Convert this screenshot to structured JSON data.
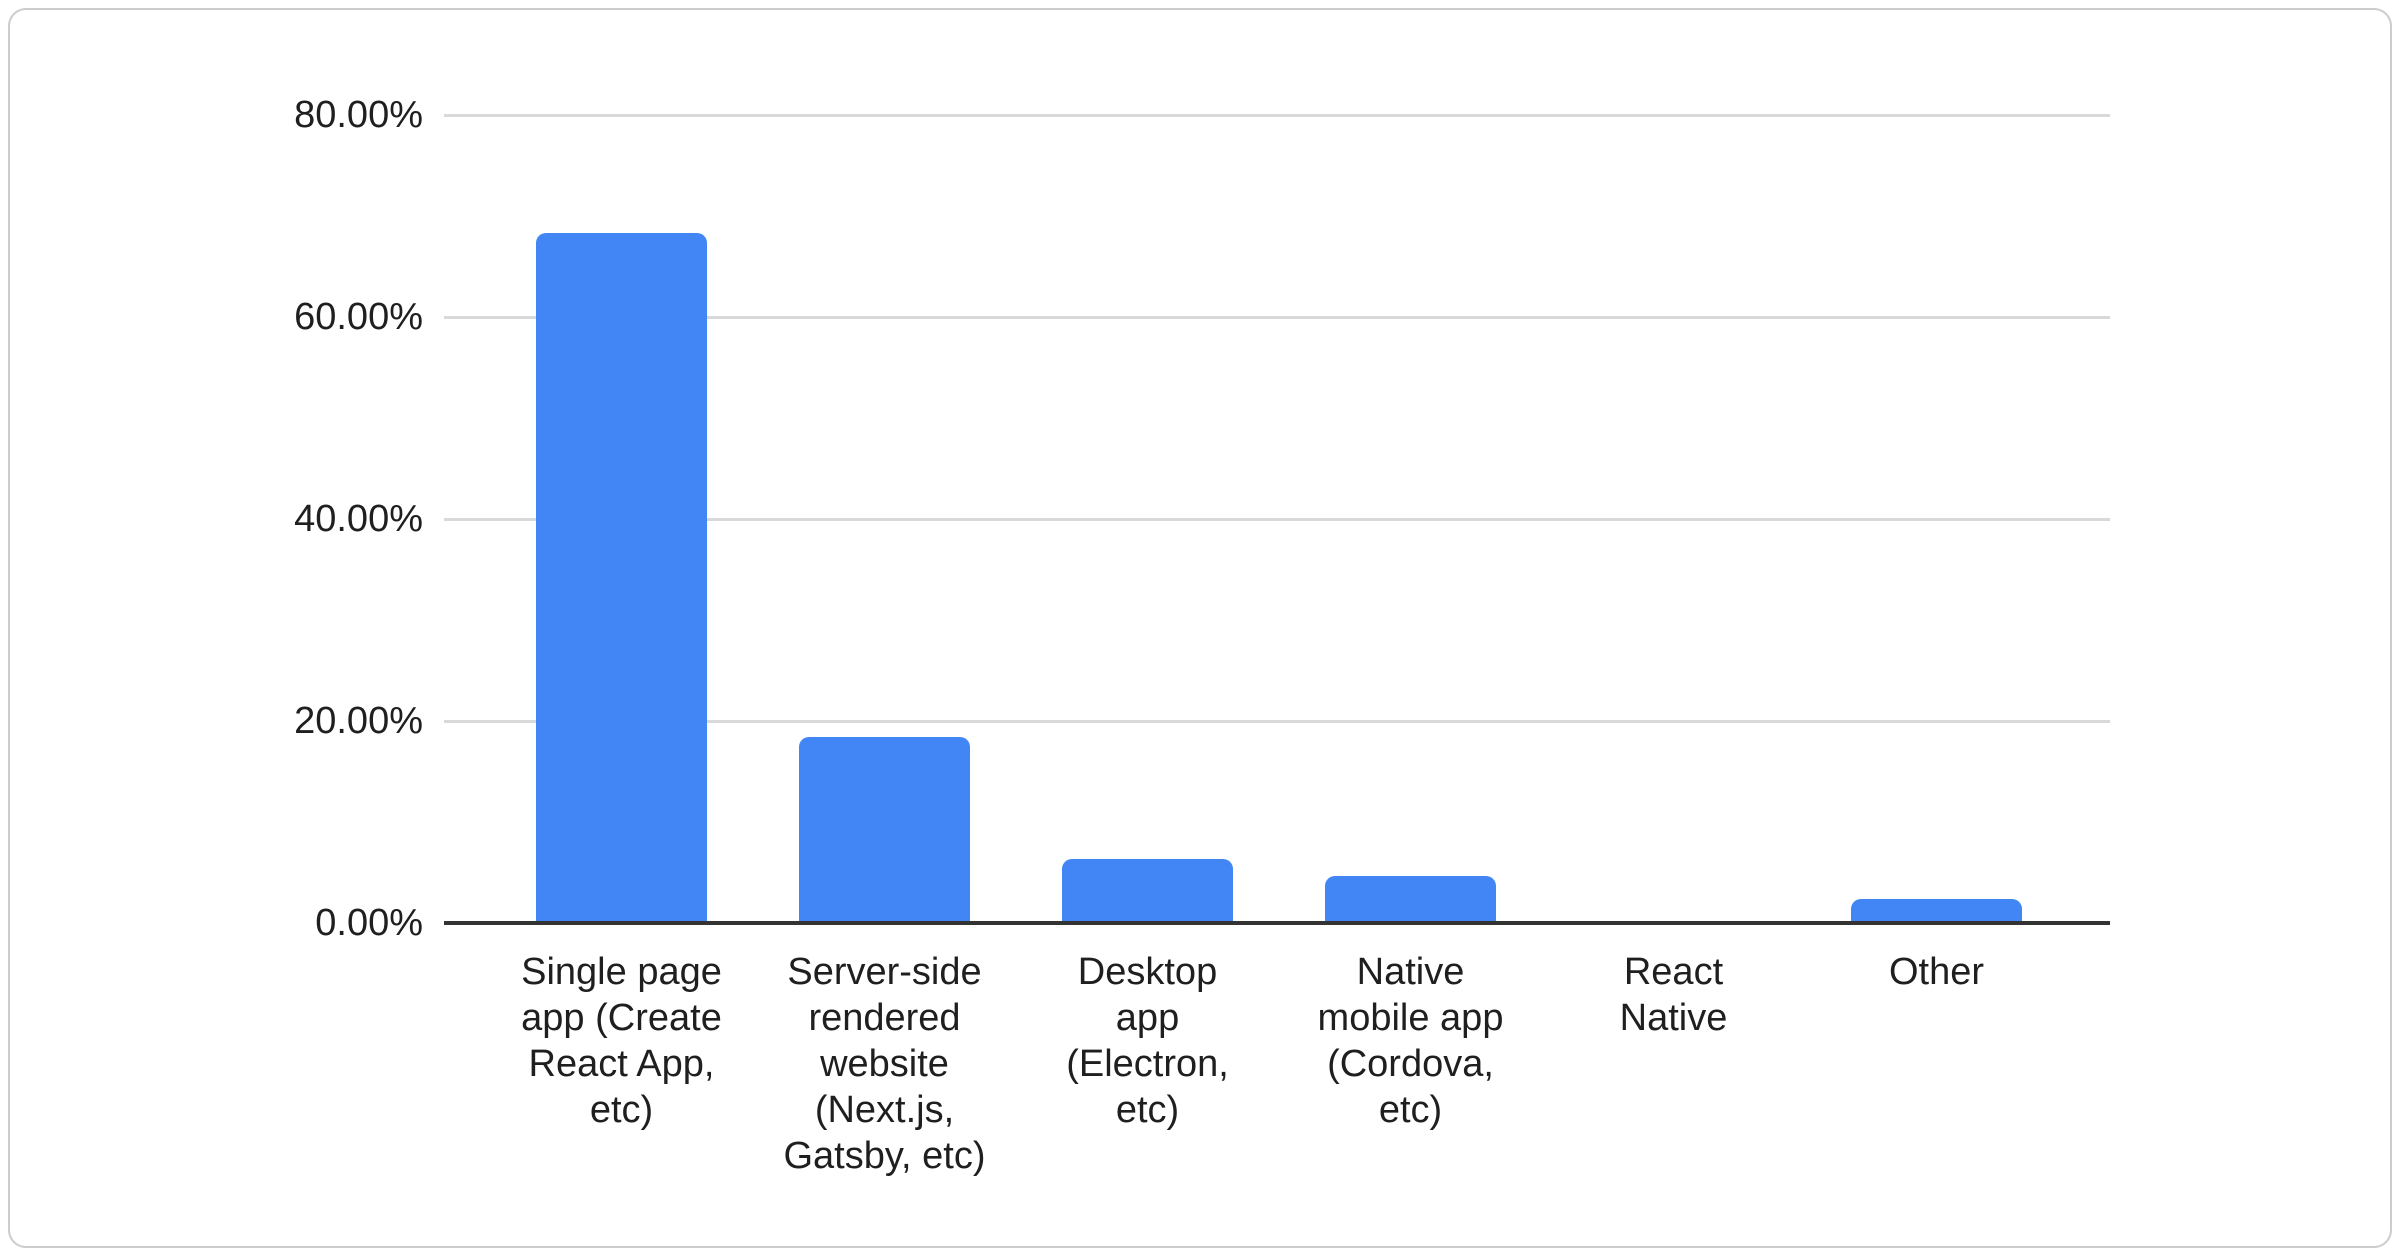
{
  "chart_data": {
    "type": "bar",
    "title": "",
    "xlabel": "",
    "ylabel": "",
    "categories": [
      "Single page app (Create React App, etc)",
      "Server-side rendered website (Next.js, Gatsby, etc)",
      "Desktop app (Electron, etc)",
      "Native mobile app (Cordova, etc)",
      "React Native",
      "Other"
    ],
    "category_lines": [
      [
        "Single page",
        "app (Create",
        "React App,",
        "etc)"
      ],
      [
        "Server-side",
        "rendered",
        "website",
        "(Next.js,",
        "Gatsby, etc)"
      ],
      [
        "Desktop",
        "app",
        "(Electron,",
        "etc)"
      ],
      [
        "Native",
        "mobile app",
        "(Cordova,",
        "etc)"
      ],
      [
        "React",
        "Native"
      ],
      [
        "Other"
      ]
    ],
    "values": [
      68.3,
      18.4,
      6.3,
      4.7,
      0,
      2.4
    ],
    "value_unit": "percent",
    "y_axis": {
      "min": 0,
      "max": 80,
      "ticks": [
        {
          "label": "80.00%",
          "value": 80
        },
        {
          "label": "60.00%",
          "value": 60
        },
        {
          "label": "40.00%",
          "value": 40
        },
        {
          "label": "20.00%",
          "value": 20
        },
        {
          "label": "0.00%",
          "value": 0
        }
      ]
    },
    "grid": true,
    "legend": "none",
    "colors": {
      "bar": "#4285f4",
      "gridline": "#d9d9d9",
      "axis_line": "#333333",
      "label_text": "#1f1f1f",
      "card_border": "#cccccc",
      "background": "#ffffff"
    }
  }
}
